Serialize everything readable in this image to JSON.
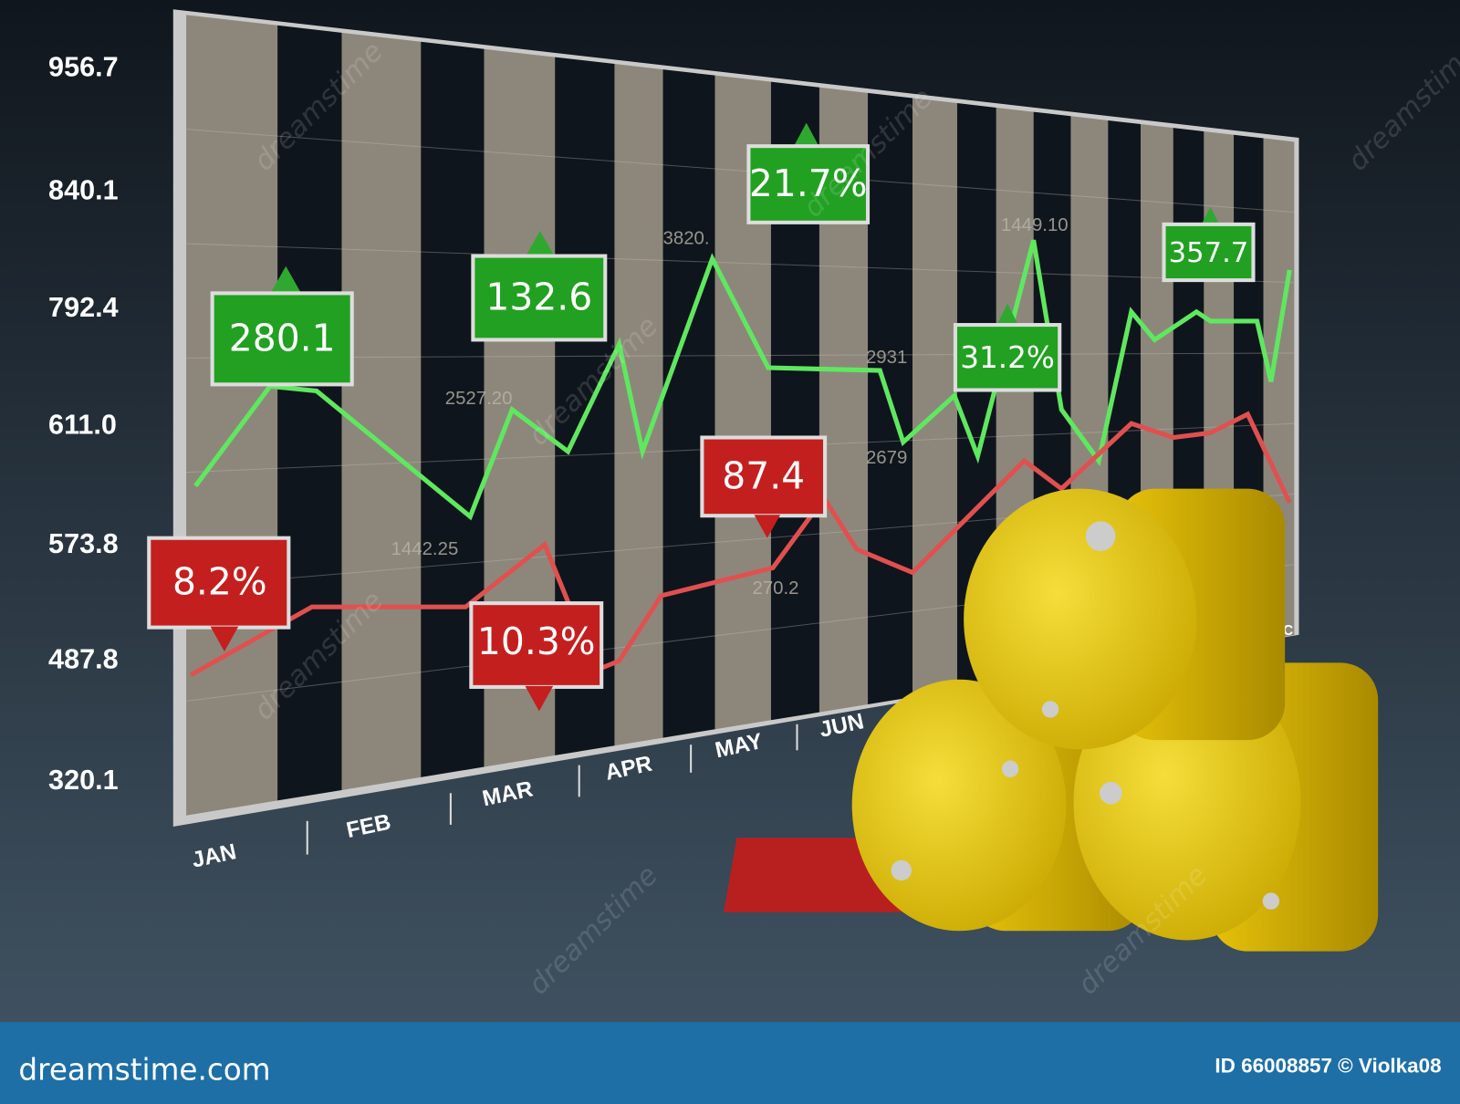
{
  "y_axis_labels": [
    "956.7",
    "840.1",
    "792.4",
    "611.0",
    "573.8",
    "487.8",
    "320.1"
  ],
  "month_labels": [
    "JAN",
    "FEB",
    "MAR",
    "APR",
    "MAY",
    "JUN",
    "EC"
  ],
  "green_badges": [
    "280.1",
    "132.6",
    "21.7%",
    "31.2%",
    "357.7"
  ],
  "red_badges": [
    "8.2%",
    "10.3%",
    "87.4"
  ],
  "faint_labels": [
    "3820.",
    "2527.20",
    "1442.25",
    "1449.10",
    "2931",
    "2679",
    "270.2"
  ],
  "watermark": "dreamstime",
  "footer": {
    "site": "dreamstime.com",
    "credit": "ID 66008857 © Violka08"
  }
}
